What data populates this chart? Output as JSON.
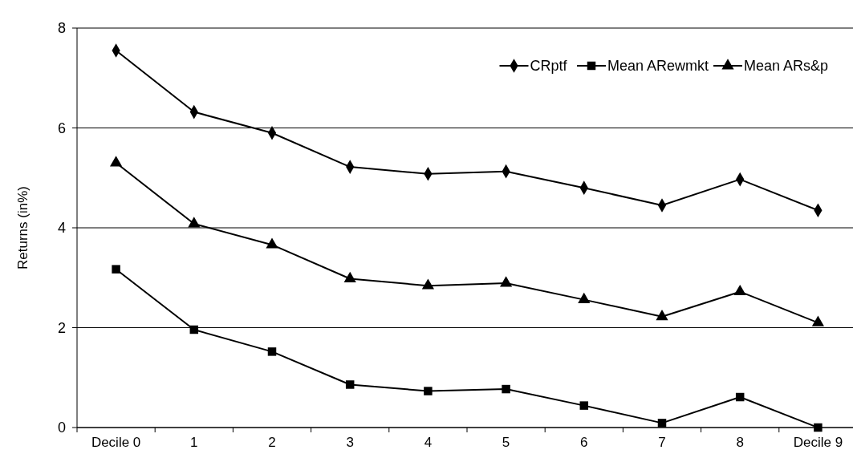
{
  "chart_data": {
    "type": "line",
    "ylabel": "Returns (in%)",
    "categories": [
      "Decile 0",
      "1",
      "2",
      "3",
      "4",
      "5",
      "6",
      "7",
      "8",
      "Decile 9"
    ],
    "series": [
      {
        "name": "CRptf",
        "color": "#000000",
        "marker": "diamond",
        "values": [
          7.55,
          6.32,
          5.9,
          5.22,
          5.08,
          5.13,
          4.8,
          4.45,
          4.97,
          4.35
        ]
      },
      {
        "name": "Mean ARewmkt",
        "color": "#000000",
        "marker": "square",
        "values": [
          3.17,
          1.96,
          1.52,
          0.86,
          0.73,
          0.77,
          0.44,
          0.09,
          0.61,
          0
        ]
      },
      {
        "name": "Mean ARs&p",
        "color": "#000000",
        "marker": "triangle",
        "values": [
          5.3,
          4.08,
          3.66,
          2.98,
          2.84,
          2.89,
          2.56,
          2.22,
          2.72,
          2.1
        ]
      }
    ],
    "ylim": [
      0,
      8
    ],
    "yticks": [
      0,
      2,
      4,
      6,
      8
    ],
    "grid": "y",
    "legend": "top right",
    "line_style": "solid"
  }
}
